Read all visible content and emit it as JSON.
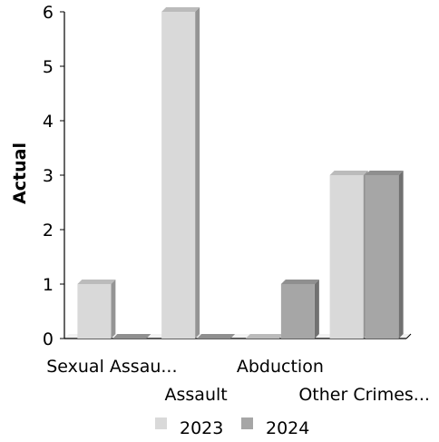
{
  "chart_data": {
    "type": "bar",
    "categories": [
      "Sexual Assau...",
      "Assault",
      "Abduction",
      "Other Crimes..."
    ],
    "series": [
      {
        "name": "2023",
        "values": [
          1,
          6,
          0,
          3
        ],
        "color": "#d9d9d9"
      },
      {
        "name": "2024",
        "values": [
          0,
          0,
          1,
          3
        ],
        "color": "#a6a6a6"
      }
    ],
    "ylabel": "Actual",
    "ylim": [
      0,
      6
    ],
    "yticks": [
      0,
      1,
      2,
      3,
      4,
      5,
      6
    ],
    "legend": "bottom",
    "grid": false
  }
}
